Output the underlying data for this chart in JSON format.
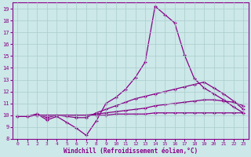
{
  "xlabel": "Windchill (Refroidissement éolien,°C)",
  "bg_color": "#cce8e8",
  "line_color": "#880088",
  "grid_color": "#aacccc",
  "xlim": [
    -0.5,
    23.5
  ],
  "ylim": [
    8,
    19.5
  ],
  "yticks": [
    8,
    9,
    10,
    11,
    12,
    13,
    14,
    15,
    16,
    17,
    18,
    19
  ],
  "xticks": [
    0,
    1,
    2,
    3,
    4,
    5,
    6,
    7,
    8,
    9,
    10,
    11,
    12,
    13,
    14,
    15,
    16,
    17,
    18,
    19,
    20,
    21,
    22,
    23
  ],
  "series": [
    {
      "x": [
        0,
        1,
        2,
        3,
        4,
        5,
        6,
        7,
        8,
        9,
        10,
        11,
        12,
        13,
        14,
        15,
        16,
        17,
        18,
        19,
        20,
        21,
        22,
        23
      ],
      "y": [
        9.9,
        9.9,
        10.1,
        9.6,
        9.9,
        9.4,
        8.9,
        8.3,
        9.5,
        11.0,
        11.5,
        12.2,
        13.2,
        14.5,
        19.2,
        18.5,
        17.8,
        15.1,
        13.1,
        12.3,
        11.8,
        11.3,
        10.7,
        10.2
      ]
    },
    {
      "x": [
        0,
        1,
        2,
        3,
        4,
        5,
        6,
        7,
        8,
        9,
        10,
        11,
        12,
        13,
        14,
        15,
        16,
        17,
        18,
        19,
        20,
        21,
        22,
        23
      ],
      "y": [
        9.9,
        9.9,
        10.1,
        9.8,
        10.0,
        9.9,
        9.8,
        9.8,
        10.2,
        10.5,
        10.8,
        11.1,
        11.4,
        11.6,
        11.8,
        12.0,
        12.2,
        12.4,
        12.6,
        12.8,
        12.3,
        11.8,
        11.2,
        10.5
      ]
    },
    {
      "x": [
        0,
        1,
        2,
        3,
        4,
        5,
        6,
        7,
        8,
        9,
        10,
        11,
        12,
        13,
        14,
        15,
        16,
        17,
        18,
        19,
        20,
        21,
        22,
        23
      ],
      "y": [
        9.9,
        9.9,
        10.0,
        10.0,
        10.0,
        10.0,
        10.0,
        10.0,
        10.1,
        10.2,
        10.3,
        10.4,
        10.5,
        10.6,
        10.8,
        10.9,
        11.0,
        11.1,
        11.2,
        11.3,
        11.3,
        11.2,
        11.1,
        10.8
      ]
    },
    {
      "x": [
        0,
        1,
        2,
        3,
        4,
        5,
        6,
        7,
        8,
        9,
        10,
        11,
        12,
        13,
        14,
        15,
        16,
        17,
        18,
        19,
        20,
        21,
        22,
        23
      ],
      "y": [
        9.9,
        9.9,
        10.0,
        10.0,
        10.0,
        10.0,
        10.0,
        10.0,
        10.0,
        10.0,
        10.1,
        10.1,
        10.1,
        10.1,
        10.2,
        10.2,
        10.2,
        10.2,
        10.2,
        10.2,
        10.2,
        10.2,
        10.2,
        10.2
      ]
    }
  ]
}
